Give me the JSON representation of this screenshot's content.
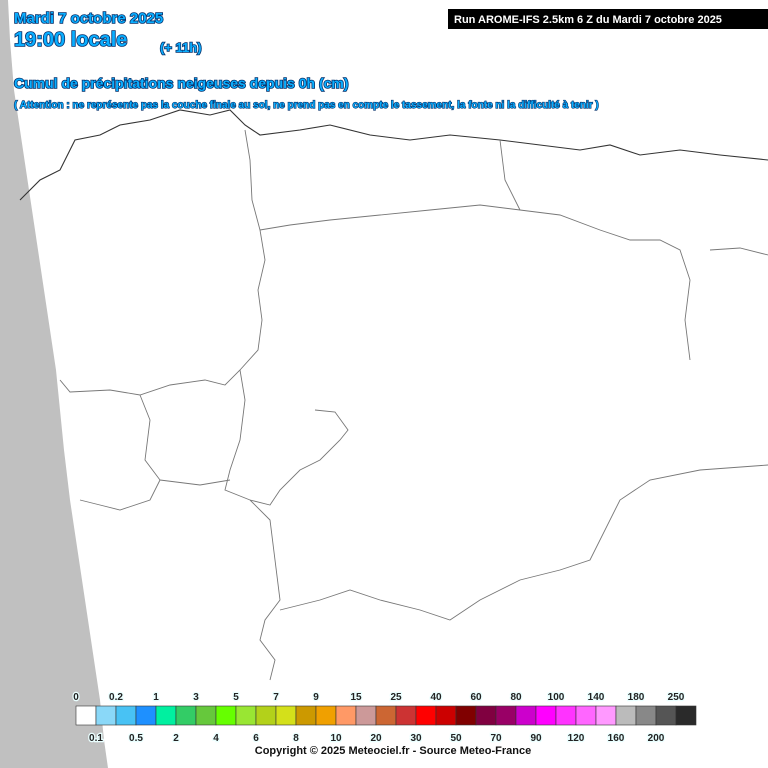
{
  "header": {
    "date": "Mardi 7 octobre 2025",
    "time": "19:00 locale",
    "offset": "(+ 11h)",
    "run": "Run AROME-IFS 2.5km 6 Z du Mardi 7 octobre 2025",
    "title": "Cumul de précipitations neigeuses depuis 0h (cm)",
    "note": "( Attention : ne représente pas la couche finale au sol, ne prend pas en compte le tassement, la fonte ni la difficulté à tenir )"
  },
  "legend": {
    "items": [
      {
        "label": "0",
        "color": "#ffffff"
      },
      {
        "label": "0.1",
        "color": "#8ad8f8"
      },
      {
        "label": "0.2",
        "color": "#48c2f4"
      },
      {
        "label": "0.5",
        "color": "#1e90ff"
      },
      {
        "label": "1",
        "color": "#00f0a0"
      },
      {
        "label": "2",
        "color": "#33cc66"
      },
      {
        "label": "3",
        "color": "#66c83c"
      },
      {
        "label": "4",
        "color": "#66ff00"
      },
      {
        "label": "5",
        "color": "#99e633"
      },
      {
        "label": "6",
        "color": "#b3d11a"
      },
      {
        "label": "7",
        "color": "#d4e01a"
      },
      {
        "label": "8",
        "color": "#cc9900"
      },
      {
        "label": "9",
        "color": "#f0a000"
      },
      {
        "label": "10",
        "color": "#ff9966"
      },
      {
        "label": "15",
        "color": "#cc9999"
      },
      {
        "label": "20",
        "color": "#cc6633"
      },
      {
        "label": "25",
        "color": "#cc3333"
      },
      {
        "label": "30",
        "color": "#ff0000"
      },
      {
        "label": "40",
        "color": "#cc0000"
      },
      {
        "label": "50",
        "color": "#800000"
      },
      {
        "label": "60",
        "color": "#800040"
      },
      {
        "label": "70",
        "color": "#990066"
      },
      {
        "label": "80",
        "color": "#cc00cc"
      },
      {
        "label": "90",
        "color": "#ff00ff"
      },
      {
        "label": "100",
        "color": "#ff33ff"
      },
      {
        "label": "120",
        "color": "#ff66ff"
      },
      {
        "label": "140",
        "color": "#ff99ff"
      },
      {
        "label": "160",
        "color": "#bbbbbb"
      },
      {
        "label": "180",
        "color": "#888888"
      },
      {
        "label": "200",
        "color": "#555555"
      },
      {
        "label": "250",
        "color": "#2a2a2a"
      }
    ]
  },
  "copyright": "Copyright © 2025 Meteociel.fr - Source Meteo-France"
}
